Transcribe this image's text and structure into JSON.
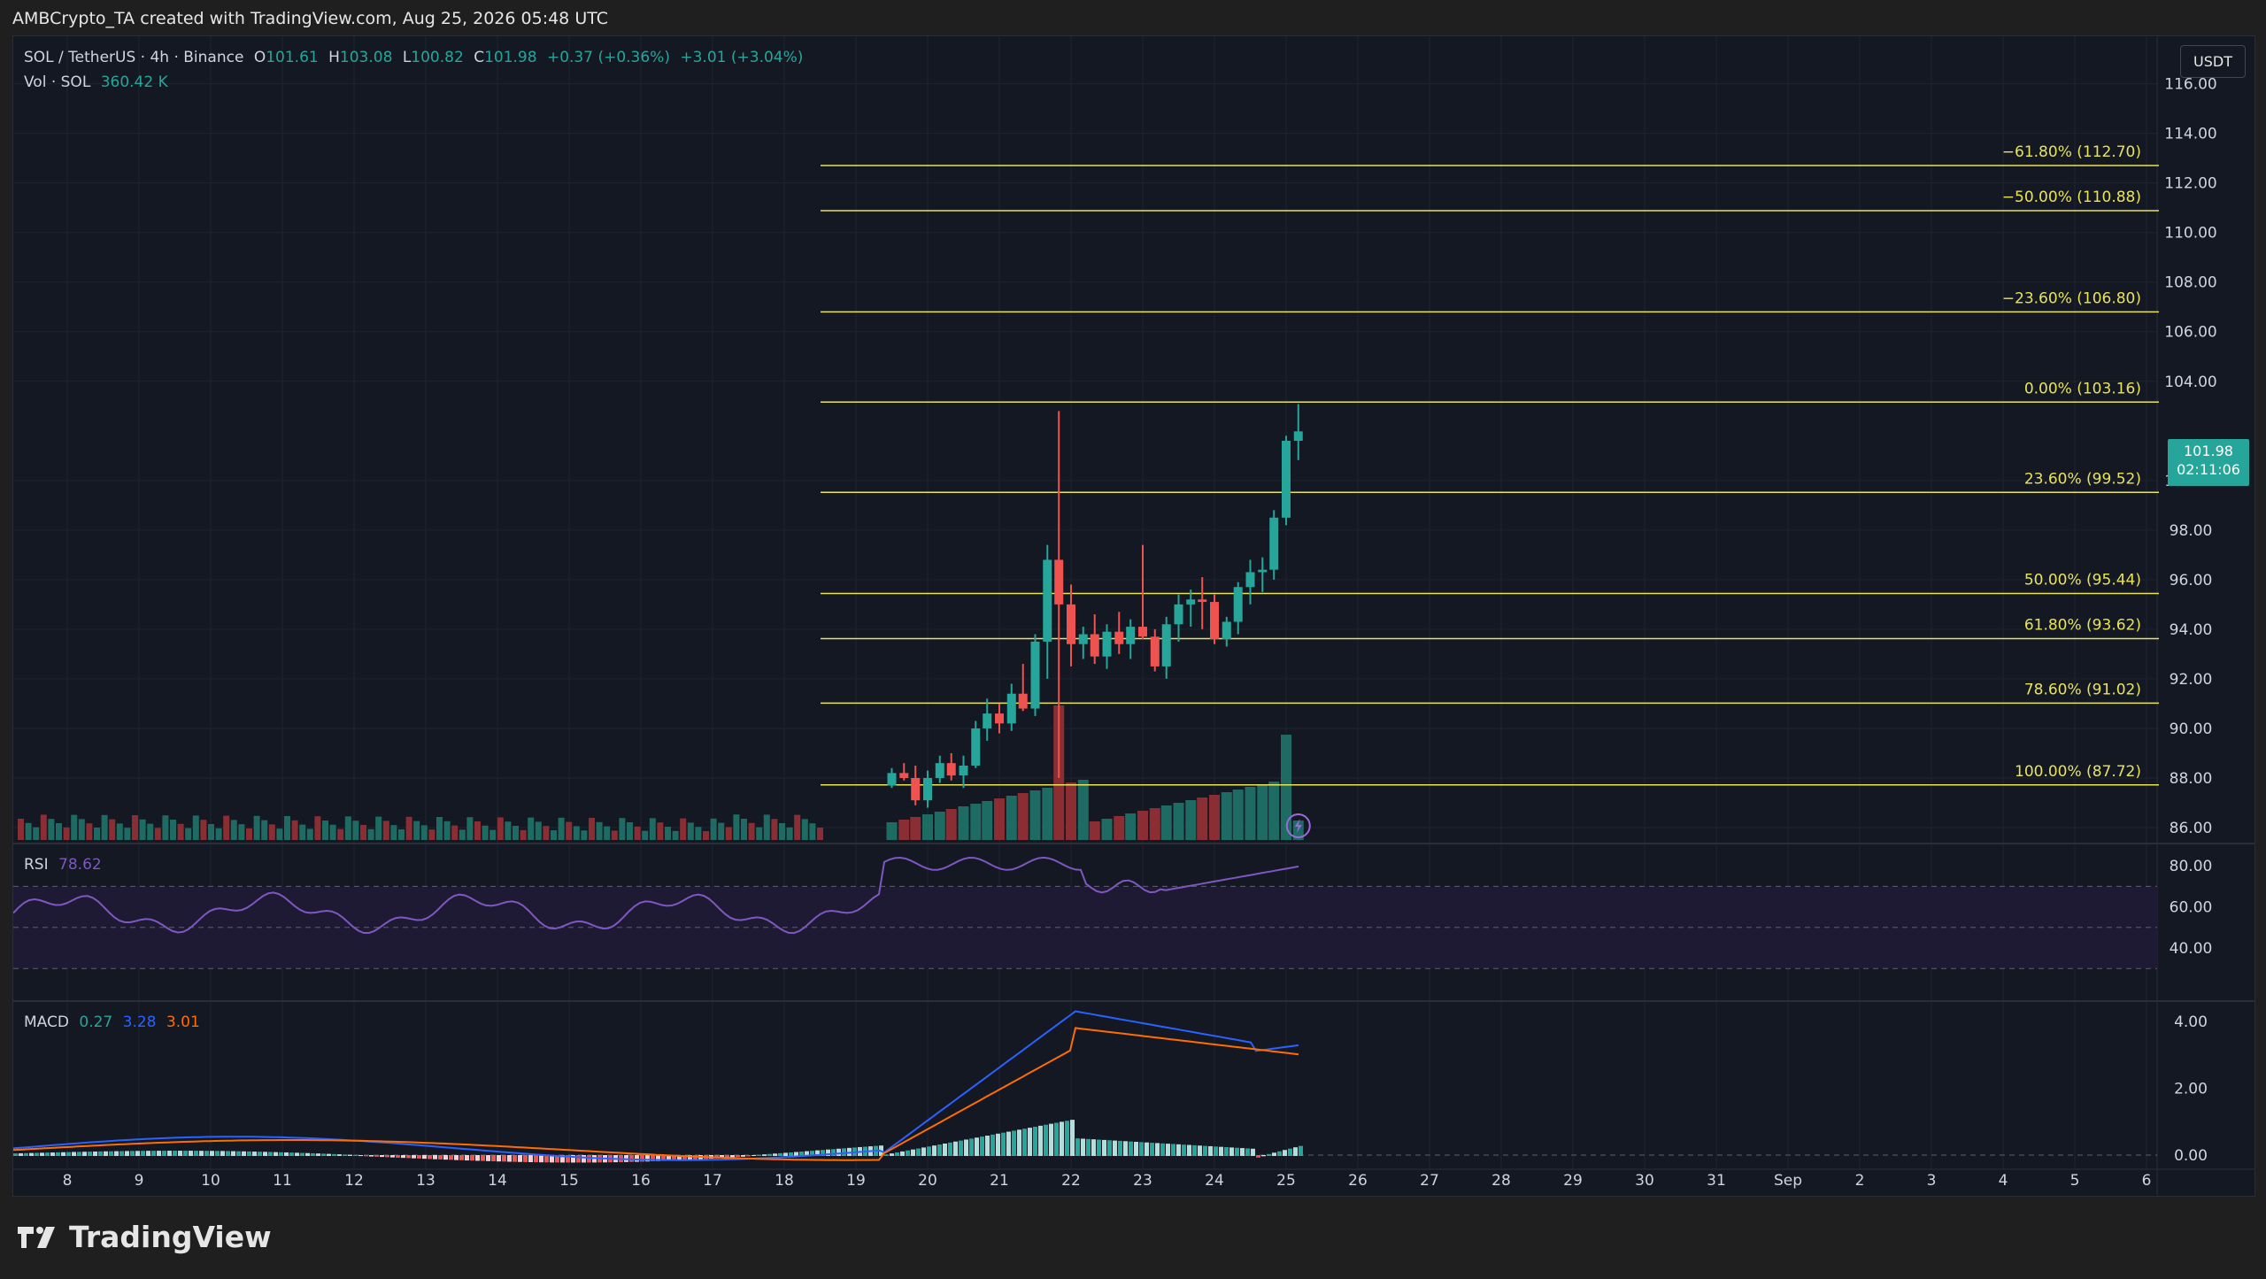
{
  "header": {
    "title": "AMBCrypto_TA created with TradingView.com, Aug 25, 2026 05:48 UTC"
  },
  "legend": {
    "symbol": "SOL / TetherUS · 4h · Binance",
    "open_label": "O",
    "open": "101.61",
    "high_label": "H",
    "high": "103.08",
    "low_label": "L",
    "low": "100.82",
    "close_label": "C",
    "close": "101.98",
    "change": "+0.37 (+0.36%)",
    "change2": "+3.01 (+3.04%)",
    "vol_label": "Vol · SOL",
    "vol_value": "360.42 K"
  },
  "currency_button": "USDT",
  "price_badge": {
    "price": "101.98",
    "countdown": "02:11:06"
  },
  "rsi_legend": {
    "label": "RSI",
    "value": "78.62"
  },
  "macd_legend": {
    "label": "MACD",
    "v1": "0.27",
    "v2": "3.28",
    "v3": "3.01"
  },
  "brand": {
    "name": "TradingView"
  },
  "colors": {
    "background": "#141823",
    "up": "#26a69a",
    "down": "#ef5350",
    "fib": "#e8e35a",
    "rsi": "#7e57c2",
    "macd": "#2962ff",
    "signal": "#ff6d00"
  },
  "chart_data": {
    "type": "candlestick",
    "price_axis": [
      "116.00",
      "114.00",
      "112.00",
      "110.00",
      "108.00",
      "106.00",
      "104.00",
      "100.00",
      "98.00",
      "96.00",
      "94.00",
      "92.00",
      "90.00",
      "88.00",
      "86.00"
    ],
    "price_range": [
      85.5,
      117.2
    ],
    "x_ticks": [
      "8",
      "9",
      "10",
      "11",
      "12",
      "13",
      "14",
      "15",
      "16",
      "17",
      "18",
      "19",
      "20",
      "21",
      "22",
      "23",
      "24",
      "25",
      "26",
      "27",
      "28",
      "29",
      "30",
      "31",
      "Sep",
      "2",
      "3",
      "4",
      "5",
      "6"
    ],
    "fib_levels": [
      {
        "label": "−61.80% (112.70)",
        "price": 112.7
      },
      {
        "label": "−50.00% (110.88)",
        "price": 110.88
      },
      {
        "label": "−23.60% (106.80)",
        "price": 106.8
      },
      {
        "label": "0.00% (103.16)",
        "price": 103.16
      },
      {
        "label": "23.60% (99.52)",
        "price": 99.52
      },
      {
        "label": "50.00% (95.44)",
        "price": 95.44
      },
      {
        "label": "61.80% (93.62)",
        "price": 93.62
      },
      {
        "label": "78.60% (91.02)",
        "price": 91.02
      },
      {
        "label": "100.00% (87.72)",
        "price": 87.72
      }
    ],
    "candles": [
      [
        19.5,
        87.7,
        88.4,
        87.6,
        88.2
      ],
      [
        19.67,
        88.2,
        88.6,
        87.9,
        88.0
      ],
      [
        19.83,
        88.0,
        88.5,
        86.9,
        87.1
      ],
      [
        20.0,
        87.1,
        88.3,
        86.8,
        88.0
      ],
      [
        20.17,
        88.0,
        88.9,
        87.8,
        88.6
      ],
      [
        20.33,
        88.6,
        89.0,
        87.9,
        88.1
      ],
      [
        20.5,
        88.1,
        88.9,
        87.6,
        88.5
      ],
      [
        20.67,
        88.5,
        90.3,
        88.4,
        90.0
      ],
      [
        20.83,
        90.0,
        91.2,
        89.5,
        90.6
      ],
      [
        21.0,
        90.6,
        91.0,
        89.8,
        90.2
      ],
      [
        21.17,
        90.2,
        91.8,
        89.9,
        91.4
      ],
      [
        21.33,
        91.4,
        92.6,
        90.7,
        90.8
      ],
      [
        21.5,
        90.8,
        93.8,
        90.5,
        93.5
      ],
      [
        21.67,
        93.5,
        97.4,
        92.0,
        96.8
      ],
      [
        21.83,
        96.8,
        102.8,
        88.0,
        95.0
      ],
      [
        22.0,
        95.0,
        95.8,
        92.5,
        93.4
      ],
      [
        22.17,
        93.4,
        94.1,
        92.8,
        93.8
      ],
      [
        22.33,
        93.8,
        94.6,
        92.6,
        92.9
      ],
      [
        22.5,
        92.9,
        94.2,
        92.4,
        93.9
      ],
      [
        22.67,
        93.9,
        94.7,
        93.0,
        93.4
      ],
      [
        22.83,
        93.4,
        94.4,
        92.8,
        94.1
      ],
      [
        23.0,
        94.1,
        97.4,
        93.6,
        93.7
      ],
      [
        23.17,
        93.7,
        94.0,
        92.3,
        92.5
      ],
      [
        23.33,
        92.5,
        94.5,
        92.0,
        94.2
      ],
      [
        23.5,
        94.2,
        95.4,
        93.5,
        95.0
      ],
      [
        23.67,
        95.0,
        95.6,
        94.1,
        95.2
      ],
      [
        23.83,
        95.2,
        96.1,
        94.0,
        95.1
      ],
      [
        24.0,
        95.1,
        95.4,
        93.4,
        93.6
      ],
      [
        24.17,
        93.6,
        94.5,
        93.3,
        94.3
      ],
      [
        24.33,
        94.3,
        95.9,
        93.8,
        95.7
      ],
      [
        24.5,
        95.7,
        96.8,
        95.0,
        96.3
      ],
      [
        24.67,
        96.3,
        96.9,
        95.5,
        96.4
      ],
      [
        24.83,
        96.4,
        98.8,
        96.0,
        98.5
      ],
      [
        25.0,
        98.5,
        101.8,
        98.2,
        101.6
      ],
      [
        25.17,
        101.6,
        103.08,
        100.82,
        101.98
      ]
    ],
    "rsi_axis": [
      "80.00",
      "60.00",
      "40.00"
    ],
    "rsi_band": [
      30,
      70
    ],
    "macd_axis": [
      "4.00",
      "2.00",
      "0.00"
    ]
  }
}
